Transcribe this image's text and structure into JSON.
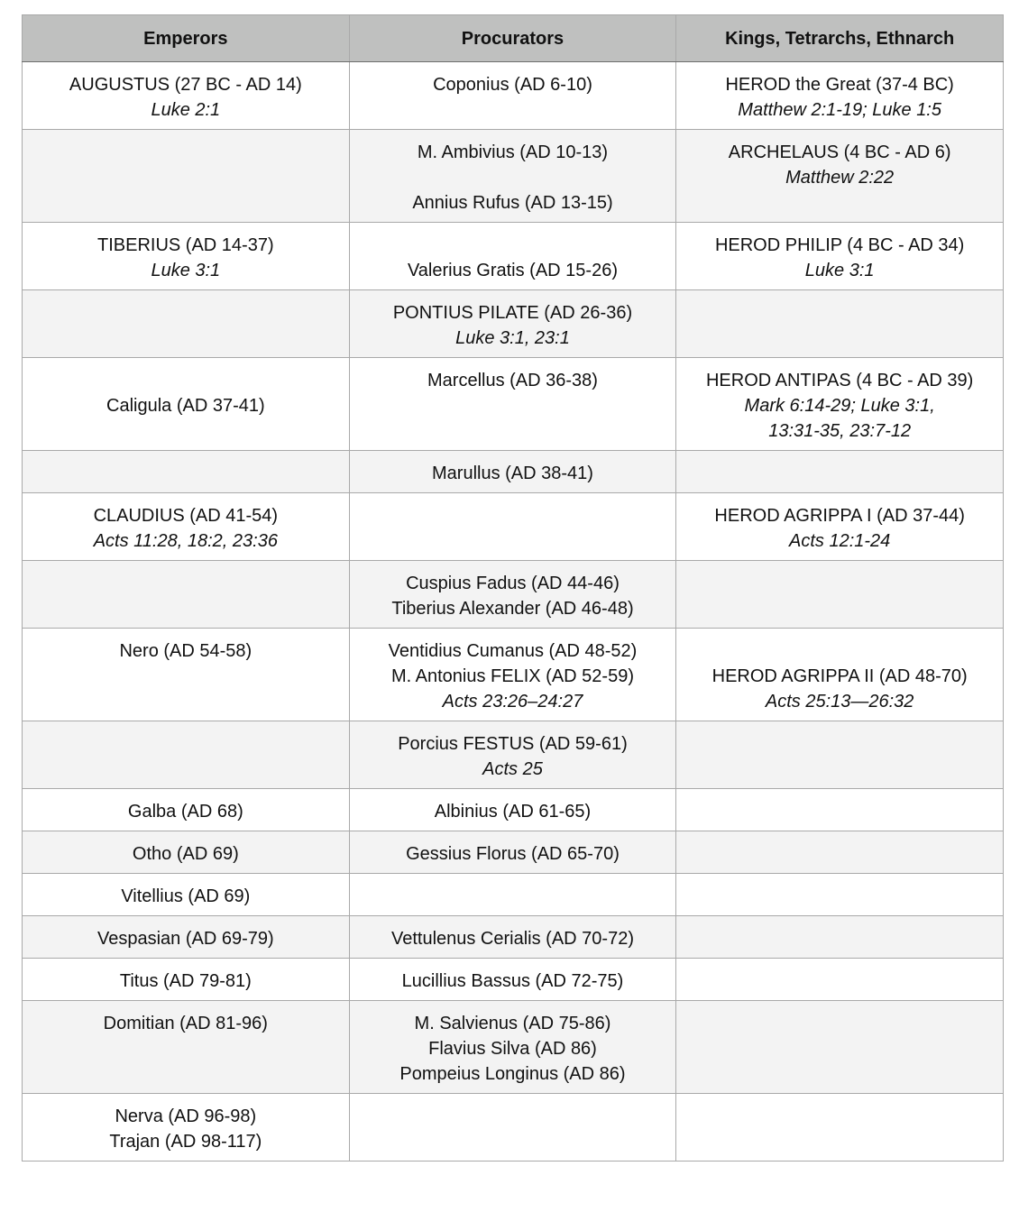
{
  "headers": [
    "Emperors",
    "Procurators",
    "Kings, Tetrarchs, Ethnarch"
  ],
  "rows": [
    [
      [
        {
          "t": "AUGUSTUS (27 BC - AD 14)"
        },
        {
          "t": "Luke 2:1",
          "i": true
        }
      ],
      [
        {
          "t": "Coponius (AD 6-10)"
        }
      ],
      [
        {
          "t": "HEROD the Great (37-4 BC)"
        },
        {
          "t": "Matthew 2:1-19; Luke 1:5",
          "i": true
        }
      ]
    ],
    [
      [],
      [
        {
          "t": "M. Ambivius (AD 10-13)"
        },
        {
          "t": ""
        },
        {
          "t": "Annius Rufus (AD 13-15)"
        }
      ],
      [
        {
          "t": "ARCHELAUS (4 BC - AD 6)"
        },
        {
          "t": "Matthew 2:22",
          "i": true
        }
      ]
    ],
    [
      [
        {
          "t": "TIBERIUS (AD 14-37)"
        },
        {
          "t": "Luke 3:1",
          "i": true
        }
      ],
      [
        {
          "t": ""
        },
        {
          "t": "Valerius Gratis (AD 15-26)"
        }
      ],
      [
        {
          "t": "HEROD PHILIP (4 BC - AD 34)"
        },
        {
          "t": "Luke 3:1",
          "i": true
        }
      ]
    ],
    [
      [],
      [
        {
          "t": "PONTIUS PILATE (AD 26-36)"
        },
        {
          "t": "Luke 3:1, 23:1",
          "i": true
        }
      ],
      []
    ],
    [
      [
        {
          "t": ""
        },
        {
          "t": "Caligula (AD 37-41)"
        }
      ],
      [
        {
          "t": "Marcellus (AD 36-38)"
        }
      ],
      [
        {
          "t": "HEROD ANTIPAS (4 BC - AD 39)"
        },
        {
          "t": "Mark 6:14-29; Luke 3:1,",
          "i": true
        },
        {
          "t": "13:31-35, 23:7-12",
          "i": true
        }
      ]
    ],
    [
      [],
      [
        {
          "t": "Marullus (AD 38-41)"
        }
      ],
      []
    ],
    [
      [
        {
          "t": "CLAUDIUS (AD 41-54)"
        },
        {
          "t": "Acts 11:28, 18:2, 23:36",
          "i": true
        }
      ],
      [],
      [
        {
          "t": "HEROD AGRIPPA I (AD 37-44)"
        },
        {
          "t": "Acts 12:1-24",
          "i": true
        }
      ]
    ],
    [
      [],
      [
        {
          "t": "Cuspius Fadus (AD 44-46)"
        },
        {
          "t": "Tiberius Alexander (AD 46-48)"
        }
      ],
      []
    ],
    [
      [
        {
          "t": "Nero (AD 54-58)"
        }
      ],
      [
        {
          "t": "Ventidius Cumanus (AD 48-52)"
        },
        {
          "t": "M. Antonius FELIX (AD 52-59)"
        },
        {
          "t": "Acts 23:26–24:27",
          "i": true
        }
      ],
      [
        {
          "t": ""
        },
        {
          "t": "HEROD AGRIPPA II (AD 48-70)"
        },
        {
          "t": "Acts 25:13—26:32",
          "i": true
        }
      ]
    ],
    [
      [],
      [
        {
          "t": "Porcius FESTUS (AD 59-61)"
        },
        {
          "t": "Acts 25",
          "i": true
        }
      ],
      []
    ],
    [
      [
        {
          "t": "Galba (AD 68)"
        }
      ],
      [
        {
          "t": "Albinius (AD 61-65)"
        }
      ],
      []
    ],
    [
      [
        {
          "t": "Otho (AD 69)"
        }
      ],
      [
        {
          "t": "Gessius Florus (AD 65-70)"
        }
      ],
      []
    ],
    [
      [
        {
          "t": "Vitellius (AD 69)"
        }
      ],
      [],
      []
    ],
    [
      [
        {
          "t": "Vespasian (AD 69-79)"
        }
      ],
      [
        {
          "t": "Vettulenus Cerialis (AD 70-72)"
        }
      ],
      []
    ],
    [
      [
        {
          "t": "Titus (AD 79-81)"
        }
      ],
      [
        {
          "t": "Lucillius Bassus (AD 72-75)"
        }
      ],
      []
    ],
    [
      [
        {
          "t": "Domitian (AD 81-96)"
        }
      ],
      [
        {
          "t": "M. Salvienus (AD 75-86)"
        },
        {
          "t": "Flavius Silva (AD 86)"
        },
        {
          "t": "Pompeius Longinus (AD 86)"
        }
      ],
      []
    ],
    [
      [
        {
          "t": "Nerva (AD 96-98)"
        },
        {
          "t": "Trajan (AD 98-117)"
        }
      ],
      [],
      []
    ]
  ]
}
